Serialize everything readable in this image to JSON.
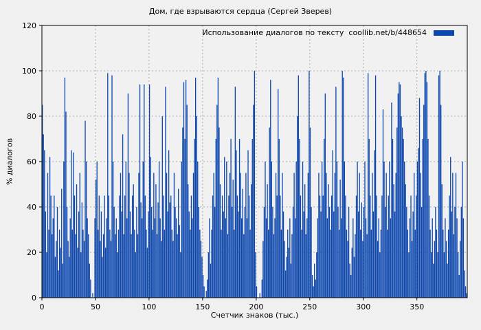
{
  "chart_data": {
    "type": "bar",
    "style": "impulses",
    "title": "Дом, где взрываются сердца (Сергей Зверев)",
    "xlabel": "Счетчик знаков (тыс.)",
    "ylabel": "% диалогов",
    "legend": {
      "label": "Использование диалогов по тексту  coollib.net/b/448654",
      "position": "top-right-inside"
    },
    "xlim": [
      0,
      397
    ],
    "ylim": [
      0,
      120
    ],
    "x_ticks": [
      0,
      50,
      100,
      150,
      200,
      250,
      300,
      350
    ],
    "y_ticks": [
      0,
      20,
      40,
      60,
      80,
      100,
      120
    ],
    "grid": true,
    "x_start": 0,
    "x_step": 1,
    "values": [
      85,
      72,
      65,
      38,
      20,
      55,
      30,
      62,
      45,
      28,
      35,
      45,
      18,
      25,
      40,
      12,
      30,
      22,
      48,
      15,
      60,
      97,
      82,
      40,
      25,
      18,
      35,
      65,
      30,
      64,
      45,
      28,
      50,
      22,
      38,
      55,
      20,
      42,
      30,
      25,
      78,
      60,
      35,
      28,
      15,
      8,
      0,
      2,
      0,
      35,
      52,
      60,
      30,
      45,
      25,
      38,
      18,
      28,
      45,
      22,
      35,
      99,
      45,
      30,
      25,
      98,
      60,
      40,
      28,
      35,
      20,
      30,
      45,
      55,
      38,
      72,
      28,
      45,
      60,
      35,
      90,
      55,
      38,
      28,
      45,
      50,
      30,
      20,
      40,
      28,
      55,
      94,
      42,
      35,
      60,
      94,
      45,
      30,
      22,
      38,
      94,
      62,
      40,
      30,
      55,
      35,
      50,
      28,
      42,
      60,
      35,
      25,
      80,
      45,
      30,
      93,
      55,
      38,
      65,
      42,
      45,
      30,
      25,
      55,
      40,
      35,
      28,
      48,
      32,
      20,
      60,
      75,
      95,
      70,
      96,
      85,
      50,
      38,
      30,
      45,
      35,
      55,
      70,
      97,
      80,
      60,
      40,
      30,
      25,
      18,
      10,
      5,
      0,
      3,
      8,
      20,
      35,
      15,
      30,
      45,
      55,
      40,
      70,
      85,
      97,
      75,
      50,
      30,
      45,
      38,
      62,
      35,
      60,
      28,
      45,
      55,
      70,
      40,
      52,
      30,
      93,
      65,
      45,
      38,
      70,
      55,
      35,
      48,
      28,
      40,
      55,
      35,
      65,
      45,
      30,
      50,
      70,
      85,
      100,
      20,
      5,
      0,
      0,
      2,
      0,
      8,
      25,
      40,
      60,
      35,
      50,
      30,
      75,
      96,
      60,
      40,
      28,
      35,
      55,
      45,
      92,
      70,
      45,
      30,
      55,
      38,
      25,
      12,
      18,
      30,
      22,
      35,
      15,
      28,
      40,
      55,
      35,
      60,
      80,
      98,
      70,
      45,
      30,
      60,
      38,
      50,
      28,
      35,
      55,
      100,
      75,
      40,
      10,
      5,
      15,
      8,
      20,
      35,
      55,
      45,
      38,
      60,
      45,
      70,
      90,
      55,
      35,
      50,
      40,
      30,
      45,
      65,
      38,
      55,
      93,
      60,
      40,
      30,
      52,
      35,
      100,
      97,
      60,
      45,
      30,
      25,
      40,
      15,
      10,
      22,
      35,
      18,
      28,
      45,
      60,
      38,
      55,
      30,
      42,
      25,
      40,
      60,
      35,
      28,
      99,
      70,
      45,
      30,
      55,
      38,
      65,
      98,
      45,
      25,
      35,
      20,
      30,
      45,
      83,
      60,
      40,
      55,
      30,
      45,
      60,
      35,
      86,
      70,
      50,
      38,
      55,
      75,
      90,
      95,
      94,
      80,
      75,
      70,
      60,
      50,
      40,
      30,
      20,
      35,
      45,
      25,
      38,
      55,
      30,
      45,
      60,
      66,
      88,
      55,
      40,
      70,
      85,
      99,
      100,
      95,
      70,
      45,
      30,
      20,
      35,
      15,
      25,
      40,
      30,
      20,
      98,
      100,
      85,
      50,
      30,
      20,
      35,
      25,
      15,
      30,
      45,
      62,
      38,
      55,
      28,
      40,
      55,
      35,
      20,
      10,
      25,
      40,
      60,
      35,
      12,
      5,
      2
    ],
    "colors": {
      "bar": "#0e47ad",
      "grid": "#aaaaaa",
      "border": "#000000",
      "page_bg": "#f0f0f0",
      "plot_bg": "#f1f1f1"
    }
  }
}
